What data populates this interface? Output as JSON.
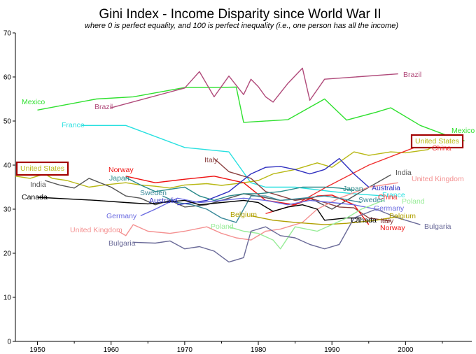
{
  "chart_data": {
    "type": "line",
    "title": "Gini Index - Income Disparity since World War II",
    "subtitle": "where 0 is perfect equality, and 100 is perfect inequality (i.e., one person has all the income)",
    "xlabel": "",
    "ylabel": "",
    "xlim": [
      1947,
      2009
    ],
    "ylim": [
      0,
      70
    ],
    "xticks": [
      1950,
      1960,
      1970,
      1980,
      1990,
      2000
    ],
    "yticks": [
      0,
      10,
      20,
      30,
      40,
      50,
      60,
      70
    ],
    "grid": false,
    "series": [
      {
        "name": "Mexico",
        "color": "#2fe02f",
        "points": [
          [
            1950,
            52.5
          ],
          [
            1958,
            55
          ],
          [
            1963,
            55.5
          ],
          [
            1968,
            57
          ],
          [
            1970,
            57.6
          ],
          [
            1974,
            57.6
          ],
          [
            1977,
            57.7
          ],
          [
            1978,
            49.7
          ],
          [
            1984,
            50.3
          ],
          [
            1989,
            55
          ],
          [
            1992,
            50.2
          ],
          [
            1996,
            52
          ],
          [
            1998,
            53
          ],
          [
            2002,
            49
          ],
          [
            2006,
            46.5
          ],
          [
            2008,
            45.5
          ]
        ]
      },
      {
        "name": "Brazil",
        "color": "#b04a7a",
        "points": [
          [
            1960,
            53
          ],
          [
            1970,
            57.5
          ],
          [
            1972,
            61.2
          ],
          [
            1974,
            55.5
          ],
          [
            1976,
            60.2
          ],
          [
            1978,
            56
          ],
          [
            1979,
            59.5
          ],
          [
            1980,
            57.8
          ],
          [
            1981,
            55.5
          ],
          [
            1982,
            54.3
          ],
          [
            1984,
            58.5
          ],
          [
            1986,
            62
          ],
          [
            1987,
            54.7
          ],
          [
            1989,
            59.5
          ],
          [
            1999,
            60.7
          ]
        ]
      },
      {
        "name": "France",
        "color": "#28e0e0",
        "points": [
          [
            1956,
            49
          ],
          [
            1962,
            49
          ],
          [
            1970,
            44
          ],
          [
            1976,
            43
          ],
          [
            1979,
            36
          ],
          [
            1981,
            35
          ],
          [
            1985,
            35
          ],
          [
            1990,
            34
          ],
          [
            1993,
            33.5
          ],
          [
            1997,
            33
          ]
        ]
      },
      {
        "name": "United States",
        "color": "#b8b814",
        "highlight": true,
        "points": [
          [
            1947,
            37.5
          ],
          [
            1949,
            37
          ],
          [
            1951,
            38
          ],
          [
            1952,
            37
          ],
          [
            1954,
            36.5
          ],
          [
            1957,
            35
          ],
          [
            1959,
            35.5
          ],
          [
            1962,
            36
          ],
          [
            1964,
            35.5
          ],
          [
            1966,
            35.2
          ],
          [
            1968,
            34.8
          ],
          [
            1970,
            35.5
          ],
          [
            1973,
            35.8
          ],
          [
            1975,
            35.4
          ],
          [
            1978,
            36
          ],
          [
            1980,
            36.5
          ],
          [
            1982,
            38
          ],
          [
            1985,
            39
          ],
          [
            1988,
            40.5
          ],
          [
            1990,
            39.5
          ],
          [
            1993,
            43
          ],
          [
            1995,
            42.2
          ],
          [
            1998,
            43
          ],
          [
            2000,
            42.8
          ],
          [
            2003,
            43.5
          ],
          [
            2006,
            46.3
          ]
        ]
      },
      {
        "name": "China",
        "color": "#f03030",
        "points": [
          [
            1981,
            29
          ],
          [
            1985,
            31
          ],
          [
            1989,
            34.8
          ],
          [
            1995,
            40
          ],
          [
            2002,
            44.5
          ],
          [
            2005,
            47
          ]
        ]
      },
      {
        "name": "India",
        "color": "#555555",
        "points": [
          [
            1951,
            36.5
          ],
          [
            1953,
            35.5
          ],
          [
            1955,
            34.8
          ],
          [
            1957,
            37
          ],
          [
            1960,
            35
          ],
          [
            1962,
            33
          ],
          [
            1964,
            32.5
          ],
          [
            1966,
            31
          ],
          [
            1968,
            32
          ],
          [
            1970,
            30.5
          ],
          [
            1973,
            31
          ],
          [
            1978,
            33.5
          ],
          [
            1983,
            32
          ],
          [
            1987,
            32.5
          ],
          [
            1990,
            30
          ],
          [
            1992,
            32
          ],
          [
            1994,
            34
          ],
          [
            1998,
            37.8
          ]
        ]
      },
      {
        "name": "Italy",
        "color": "#8a4040",
        "points": [
          [
            1974,
            41.5
          ],
          [
            1976,
            38.5
          ],
          [
            1979,
            37
          ],
          [
            1981,
            34
          ],
          [
            1983,
            33
          ],
          [
            1985,
            32
          ],
          [
            1987,
            32.5
          ],
          [
            1989,
            31.5
          ],
          [
            1991,
            30.5
          ],
          [
            1993,
            30.3
          ],
          [
            1995,
            28
          ],
          [
            1998,
            27.3
          ]
        ]
      },
      {
        "name": "Norway",
        "color": "#ee1111",
        "points": [
          [
            1962,
            37.5
          ],
          [
            1966,
            36
          ],
          [
            1970,
            36.8
          ],
          [
            1974,
            37.5
          ],
          [
            1978,
            36
          ],
          [
            1981,
            32
          ],
          [
            1985,
            31
          ],
          [
            1988,
            33
          ],
          [
            1990,
            33.2
          ],
          [
            1993,
            31
          ],
          [
            1995,
            26.5
          ]
        ]
      },
      {
        "name": "United Kingdom",
        "color": "#f49090",
        "points": [
          [
            1961,
            25
          ],
          [
            1962,
            24
          ],
          [
            1963,
            26.5
          ],
          [
            1965,
            25
          ],
          [
            1968,
            24.5
          ],
          [
            1970,
            25
          ],
          [
            1973,
            26
          ],
          [
            1975,
            24.5
          ],
          [
            1977,
            23.5
          ],
          [
            1979,
            23
          ],
          [
            1981,
            25
          ],
          [
            1983,
            25.5
          ],
          [
            1986,
            27
          ],
          [
            1988,
            30
          ],
          [
            1991,
            32.5
          ],
          [
            1995,
            35
          ],
          [
            1999,
            36
          ]
        ]
      },
      {
        "name": "Japan",
        "color": "#2a8a8a",
        "points": [
          [
            1962,
            37.2
          ],
          [
            1964,
            35.5
          ],
          [
            1966,
            34
          ],
          [
            1968,
            34.5
          ],
          [
            1970,
            35
          ],
          [
            1972,
            33
          ],
          [
            1974,
            32
          ],
          [
            1976,
            33
          ],
          [
            1978,
            33.5
          ],
          [
            1980,
            33.5
          ],
          [
            1983,
            34
          ],
          [
            1986,
            35
          ],
          [
            1989,
            35
          ],
          [
            1991,
            34.8
          ],
          [
            1993,
            34.3
          ]
        ]
      },
      {
        "name": "Sweden",
        "color": "#3a8a9a",
        "points": [
          [
            1967,
            33
          ],
          [
            1969,
            31.5
          ],
          [
            1971,
            31
          ],
          [
            1973,
            30
          ],
          [
            1975,
            28
          ],
          [
            1977,
            27
          ],
          [
            1979,
            33
          ],
          [
            1981,
            33
          ],
          [
            1983,
            32
          ],
          [
            1986,
            32.5
          ],
          [
            1989,
            33
          ],
          [
            1991,
            32.5
          ],
          [
            1994,
            31.5
          ]
        ]
      },
      {
        "name": "Australia",
        "color": "#3030c0",
        "points": [
          [
            1969,
            31
          ],
          [
            1973,
            32
          ],
          [
            1976,
            34
          ],
          [
            1979,
            38
          ],
          [
            1981,
            39.5
          ],
          [
            1983,
            39.7
          ],
          [
            1985,
            39
          ],
          [
            1987,
            38
          ],
          [
            1989,
            39
          ],
          [
            1991,
            41.5
          ],
          [
            1993,
            38
          ],
          [
            1995,
            35
          ]
        ]
      },
      {
        "name": "Germany",
        "color": "#6a6ae0",
        "points": [
          [
            1964,
            28.5
          ],
          [
            1966,
            30
          ],
          [
            1969,
            32.5
          ],
          [
            1972,
            31.5
          ],
          [
            1975,
            32
          ],
          [
            1978,
            32.5
          ],
          [
            1981,
            32
          ],
          [
            1984,
            31
          ],
          [
            1987,
            32
          ],
          [
            1990,
            31.5
          ],
          [
            1993,
            31
          ],
          [
            1996,
            30
          ]
        ]
      },
      {
        "name": "Canada",
        "color": "#000000",
        "points": [
          [
            1950,
            32.7
          ],
          [
            1958,
            32
          ],
          [
            1962,
            31.5
          ],
          [
            1965,
            31.2
          ],
          [
            1970,
            32
          ],
          [
            1972,
            31
          ],
          [
            1975,
            31.5
          ],
          [
            1978,
            32
          ],
          [
            1980,
            31.5
          ],
          [
            1982,
            29.5
          ],
          [
            1984,
            30.5
          ],
          [
            1986,
            31
          ],
          [
            1988,
            30
          ],
          [
            1989,
            27.5
          ],
          [
            1992,
            28
          ],
          [
            1994,
            28
          ]
        ]
      },
      {
        "name": "Belgium",
        "color": "#b0a000",
        "points": [
          [
            1979,
            28.5
          ],
          [
            1982,
            27.5
          ],
          [
            1985,
            27
          ],
          [
            1989,
            26.5
          ],
          [
            1992,
            26.8
          ],
          [
            1996,
            27.5
          ],
          [
            1999,
            28.3
          ]
        ]
      },
      {
        "name": "Poland",
        "color": "#98ec98",
        "points": [
          [
            1976,
            26
          ],
          [
            1978,
            25
          ],
          [
            1980,
            24.5
          ],
          [
            1982,
            23
          ],
          [
            1983,
            21
          ],
          [
            1985,
            26
          ],
          [
            1988,
            25
          ],
          [
            1990,
            26.5
          ],
          [
            1992,
            28
          ],
          [
            1994,
            30
          ],
          [
            1997,
            32
          ]
        ]
      },
      {
        "name": "Bulgaria",
        "color": "#6a6a98",
        "points": [
          [
            1963,
            22.5
          ],
          [
            1966,
            22.3
          ],
          [
            1968,
            22.8
          ],
          [
            1970,
            21
          ],
          [
            1972,
            21.5
          ],
          [
            1974,
            20.5
          ],
          [
            1976,
            18
          ],
          [
            1978,
            19
          ],
          [
            1979,
            25
          ],
          [
            1981,
            26
          ],
          [
            1983,
            24
          ],
          [
            1985,
            23.5
          ],
          [
            1987,
            22
          ],
          [
            1989,
            21
          ],
          [
            1991,
            22
          ],
          [
            1993,
            28
          ],
          [
            1996,
            30
          ],
          [
            1999,
            28
          ],
          [
            2002,
            26.5
          ]
        ]
      }
    ],
    "labels": [
      {
        "series": "Mexico",
        "text": "Mexico"
      },
      {
        "series": "Mexico",
        "text": "Mexico"
      },
      {
        "series": "Brazil",
        "text": "Brazil"
      },
      {
        "series": "Brazil",
        "text": "Brazil"
      },
      {
        "series": "France",
        "text": "France"
      },
      {
        "series": "France",
        "text": "France"
      },
      {
        "series": "United States",
        "text": "United States",
        "boxed": true
      },
      {
        "series": "United States",
        "text": "United States",
        "boxed": true
      },
      {
        "series": "China",
        "text": "China"
      },
      {
        "series": "China",
        "text": "China"
      },
      {
        "series": "India",
        "text": "India"
      },
      {
        "series": "India",
        "text": "India"
      },
      {
        "series": "Italy",
        "text": "Italy"
      },
      {
        "series": "Italy",
        "text": "Italy"
      },
      {
        "series": "Norway",
        "text": "Norway"
      },
      {
        "series": "Norway",
        "text": "Norway"
      },
      {
        "series": "United Kingdom",
        "text": "United Kingdom"
      },
      {
        "series": "United Kingdom",
        "text": "United Kingdom"
      },
      {
        "series": "Japan",
        "text": "Japan"
      },
      {
        "series": "Japan",
        "text": "Japan"
      },
      {
        "series": "Sweden",
        "text": "Sweden"
      },
      {
        "series": "Sweden",
        "text": "Sweden"
      },
      {
        "series": "Australia",
        "text": "Australia"
      },
      {
        "series": "Australia",
        "text": "Australia"
      },
      {
        "series": "Germany",
        "text": "Germany"
      },
      {
        "series": "Germany",
        "text": "Germany"
      },
      {
        "series": "Canada",
        "text": "Canada"
      },
      {
        "series": "Canada",
        "text": "Canada"
      },
      {
        "series": "Belgium",
        "text": "Belgium"
      },
      {
        "series": "Belgium",
        "text": "Belgium"
      },
      {
        "series": "Poland",
        "text": "Poland"
      },
      {
        "series": "Poland",
        "text": "Poland"
      },
      {
        "series": "Bulgaria",
        "text": "Bulgaria"
      },
      {
        "series": "Bulgaria",
        "text": "Bulgaria"
      }
    ]
  }
}
